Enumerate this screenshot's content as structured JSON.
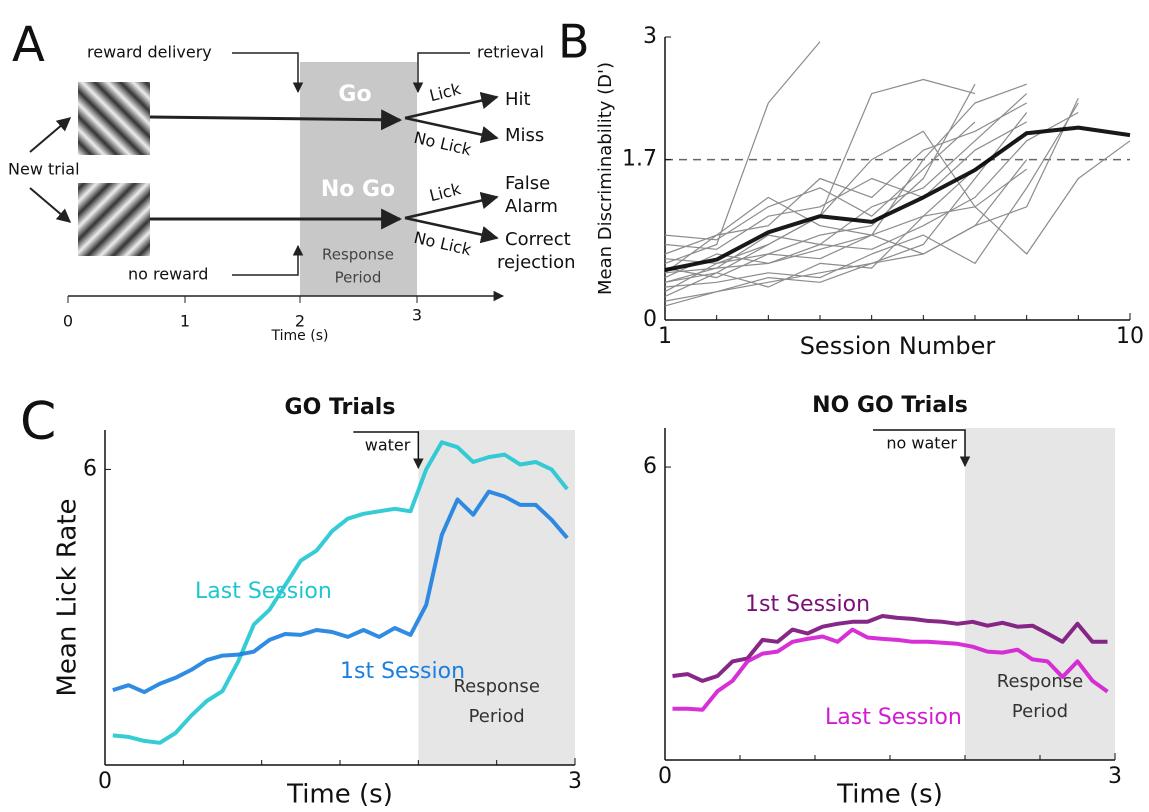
{
  "panel_labels": [
    "A",
    "B",
    "C"
  ],
  "diagram": {
    "reward_delivery": "reward delivery",
    "retrieval": "retrieval",
    "new_trial": "New trial",
    "no_reward": "no reward",
    "go": "Go",
    "no_go": "No Go",
    "lick": "Lick",
    "no_lick": "No Lick",
    "hit": "Hit",
    "miss": "Miss",
    "false_alarm": [
      "False",
      "Alarm"
    ],
    "correct_rejection": [
      "Correct",
      "rejection"
    ],
    "response_period": [
      "Response",
      "Period"
    ],
    "time_label": "Time (s)",
    "time_ticks": [
      0,
      1,
      2,
      3
    ]
  },
  "chart_data": [
    {
      "type": "line",
      "xlabel": "Session Number",
      "ylabel": "Mean Discriminability (D')",
      "x": [
        1,
        2,
        3,
        4,
        5,
        6,
        7,
        8,
        9,
        10
      ],
      "xlim": [
        1,
        10
      ],
      "ylim": [
        0,
        3
      ],
      "xticks": [
        1,
        10
      ],
      "xminorticks": [
        2,
        3,
        4,
        5,
        6,
        7,
        8,
        9
      ],
      "yticks": [
        0,
        1.7,
        3
      ],
      "hline": 1.7,
      "series": [
        {
          "color": "#8c8c8c",
          "values": [
            0.6,
            0.8,
            2.3,
            2.95,
            null,
            null,
            null,
            null,
            null,
            null
          ]
        },
        {
          "color": "#8c8c8c",
          "values": [
            0.4,
            0.5,
            0.8,
            1.1,
            2.4,
            2.55,
            2.4,
            null,
            null,
            null
          ]
        },
        {
          "color": "#8c8c8c",
          "values": [
            0.3,
            0.6,
            0.7,
            0.9,
            1.0,
            1.5,
            2.5,
            null,
            null,
            null
          ]
        },
        {
          "color": "#8c8c8c",
          "values": [
            0.5,
            0.55,
            0.9,
            0.8,
            1.2,
            1.4,
            1.9,
            2.4,
            null,
            null
          ]
        },
        {
          "color": "#8c8c8c",
          "values": [
            0.7,
            0.9,
            1.3,
            1.0,
            0.9,
            1.7,
            2.3,
            2.5,
            null,
            null
          ]
        },
        {
          "color": "#8c8c8c",
          "values": [
            0.2,
            0.3,
            0.4,
            0.5,
            0.6,
            0.8,
            1.5,
            2.2,
            null,
            null
          ]
        },
        {
          "color": "#8c8c8c",
          "values": [
            0.8,
            0.75,
            1.1,
            1.2,
            1.5,
            1.3,
            1.8,
            2.1,
            null,
            null
          ]
        },
        {
          "color": "#8c8c8c",
          "values": [
            0.45,
            0.7,
            0.6,
            0.8,
            0.75,
            1.0,
            1.3,
            1.9,
            2.2,
            null
          ]
        },
        {
          "color": "#8c8c8c",
          "values": [
            0.35,
            0.4,
            0.5,
            0.45,
            0.7,
            0.9,
            0.6,
            1.4,
            2.3,
            null
          ]
        },
        {
          "color": "#8c8c8c",
          "values": [
            0.65,
            0.6,
            0.8,
            1.1,
            1.7,
            2.0,
            1.2,
            1.6,
            null,
            null
          ]
        },
        {
          "color": "#8c8c8c",
          "values": [
            0.55,
            0.45,
            0.7,
            0.65,
            0.9,
            0.7,
            1.0,
            1.7,
            null,
            null
          ]
        },
        {
          "color": "#8c8c8c",
          "values": [
            0.25,
            0.5,
            0.35,
            0.6,
            0.55,
            1.1,
            1.6,
            2.0,
            null,
            null
          ]
        },
        {
          "color": "#8c8c8c",
          "values": [
            0.5,
            0.9,
            1.0,
            1.5,
            1.3,
            1.8,
            2.0,
            2.3,
            null,
            null
          ]
        },
        {
          "color": "#8c8c8c",
          "values": [
            0.9,
            0.85,
            1.2,
            1.4,
            1.1,
            1.6,
            2.1,
            null,
            null,
            null
          ]
        },
        {
          "color": "#8c8c8c",
          "values": [
            0.4,
            0.55,
            0.6,
            0.75,
            0.9,
            1.1,
            1.2,
            0.7,
            1.5,
            1.9
          ]
        },
        {
          "color": "#8c8c8c",
          "values": [
            0.15,
            0.3,
            0.45,
            0.4,
            0.6,
            0.7,
            1.0,
            1.2,
            2.35,
            null
          ]
        },
        {
          "color": "#000000",
          "width": 4,
          "values": [
            0.53,
            0.64,
            0.93,
            1.1,
            1.04,
            1.3,
            1.59,
            1.98,
            2.04,
            1.96
          ]
        }
      ]
    },
    {
      "type": "line",
      "title": "GO Trials",
      "xlabel": "Time (s)",
      "ylabel": "Mean Lick Rate",
      "x": [
        0.05,
        0.15,
        0.25,
        0.35,
        0.45,
        0.55,
        0.65,
        0.75,
        0.85,
        0.95,
        1.05,
        1.15,
        1.25,
        1.35,
        1.45,
        1.55,
        1.65,
        1.75,
        1.85,
        1.95,
        2.05,
        2.15,
        2.25,
        2.35,
        2.45,
        2.55,
        2.65,
        2.75,
        2.85,
        2.95
      ],
      "xlim": [
        0,
        3
      ],
      "ylim": [
        0,
        6.8
      ],
      "xticks": [
        0,
        3
      ],
      "xminorticks": [
        0.5,
        1,
        1.5,
        2,
        2.5
      ],
      "yticks": [
        6
      ],
      "shade": {
        "x": [
          2,
          3
        ],
        "color": "#e6e6e6",
        "label": [
          "Response",
          "Period"
        ]
      },
      "annotation": {
        "text": "water",
        "x": 2
      },
      "series": [
        {
          "name": "Last Session",
          "color": "#1fc6d2",
          "width": 4,
          "values": [
            0.6,
            0.57,
            0.49,
            0.45,
            0.65,
            1.0,
            1.3,
            1.5,
            2.1,
            2.85,
            3.15,
            3.65,
            4.15,
            4.35,
            4.75,
            5.0,
            5.1,
            5.15,
            5.2,
            5.15,
            6.0,
            6.55,
            6.45,
            6.15,
            6.25,
            6.3,
            6.1,
            6.15,
            6.0,
            5.6
          ]
        },
        {
          "name": "1st Session",
          "color": "#1a7fe0",
          "width": 4,
          "values": [
            1.52,
            1.62,
            1.48,
            1.65,
            1.77,
            1.93,
            2.13,
            2.22,
            2.24,
            2.3,
            2.54,
            2.66,
            2.64,
            2.74,
            2.7,
            2.6,
            2.74,
            2.6,
            2.78,
            2.64,
            3.25,
            4.67,
            5.39,
            5.08,
            5.55,
            5.45,
            5.28,
            5.28,
            4.98,
            4.61
          ]
        }
      ]
    },
    {
      "type": "line",
      "title": "NO GO Trials",
      "xlabel": "Time (s)",
      "x": [
        0.05,
        0.15,
        0.25,
        0.35,
        0.45,
        0.55,
        0.65,
        0.75,
        0.85,
        0.95,
        1.05,
        1.15,
        1.25,
        1.35,
        1.45,
        1.55,
        1.65,
        1.75,
        1.85,
        1.95,
        2.05,
        2.15,
        2.25,
        2.35,
        2.45,
        2.55,
        2.65,
        2.75,
        2.85,
        2.95
      ],
      "xlim": [
        0,
        3
      ],
      "ylim": [
        0,
        6.8
      ],
      "xticks": [
        0,
        3
      ],
      "xminorticks": [
        0.5,
        1,
        1.5,
        2,
        2.5
      ],
      "yticks": [
        6
      ],
      "shade": {
        "x": [
          2,
          3
        ],
        "color": "#e6e6e6",
        "label": [
          "Response",
          "Period"
        ]
      },
      "annotation": {
        "text": "no water",
        "x": 2
      },
      "series": [
        {
          "name": "1st Session",
          "color": "#7a0f7a",
          "width": 4,
          "values": [
            1.72,
            1.76,
            1.62,
            1.72,
            2.02,
            2.08,
            2.46,
            2.42,
            2.67,
            2.59,
            2.73,
            2.79,
            2.83,
            2.83,
            2.95,
            2.91,
            2.89,
            2.85,
            2.83,
            2.79,
            2.83,
            2.75,
            2.81,
            2.73,
            2.75,
            2.59,
            2.42,
            2.79,
            2.42,
            2.42
          ]
        },
        {
          "name": "Last Session",
          "color": "#d21ad2",
          "width": 4,
          "values": [
            1.05,
            1.05,
            1.03,
            1.41,
            1.62,
            2.02,
            2.18,
            2.22,
            2.42,
            2.48,
            2.53,
            2.42,
            2.67,
            2.51,
            2.48,
            2.46,
            2.42,
            2.42,
            2.4,
            2.38,
            2.32,
            2.22,
            2.2,
            2.26,
            2.06,
            2.02,
            1.7,
            2.02,
            1.62,
            1.4
          ]
        }
      ]
    }
  ]
}
